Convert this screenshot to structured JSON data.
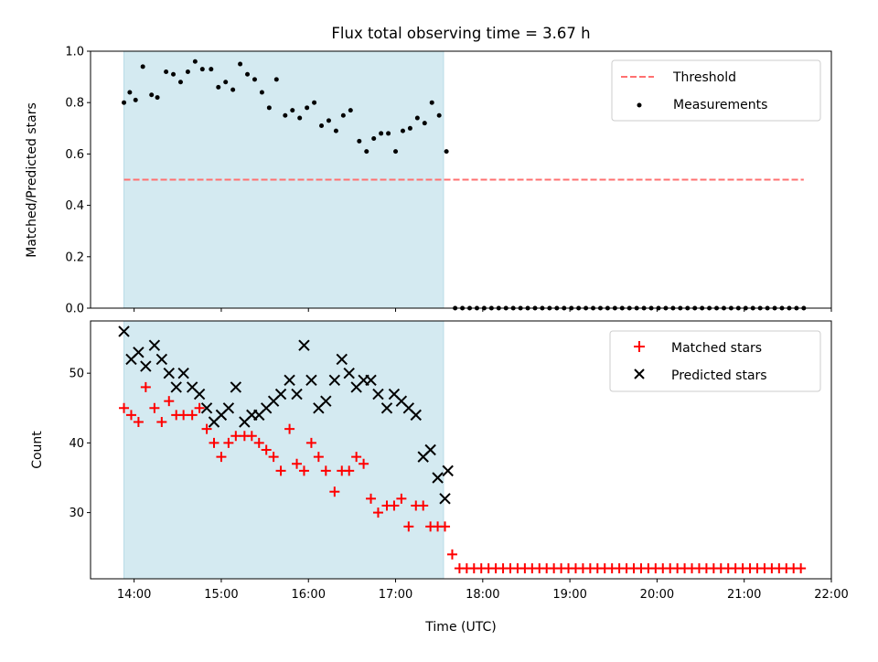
{
  "chart_data": [
    {
      "type": "scatter",
      "title": "Flux total observing time = 3.67 h",
      "xlabel": "",
      "ylabel": "Matched/Predicted stars",
      "ylim": [
        0.0,
        1.0
      ],
      "yticks": [
        "0.0",
        "0.2",
        "0.4",
        "0.6",
        "0.8",
        "1.0"
      ],
      "xlim": [
        "13:30",
        "22:00"
      ],
      "observing_window": [
        "13:53",
        "17:33"
      ],
      "threshold": 0.5,
      "legend": {
        "placement": "top-right",
        "entries": [
          "Threshold",
          "Measurements"
        ]
      },
      "colors": {
        "threshold": "#ff7070",
        "measurements": "#000000",
        "window": "#d4eaf1"
      },
      "series": [
        {
          "name": "Measurements",
          "x": [
            "13:53",
            "13:57",
            "14:01",
            "14:06",
            "14:12",
            "14:16",
            "14:22",
            "14:27",
            "14:32",
            "14:37",
            "14:42",
            "14:47",
            "14:53",
            "14:58",
            "15:03",
            "15:08",
            "15:13",
            "15:18",
            "15:23",
            "15:28",
            "15:33",
            "15:38",
            "15:44",
            "15:49",
            "15:54",
            "15:59",
            "16:04",
            "16:09",
            "16:14",
            "16:19",
            "16:24",
            "16:29",
            "16:35",
            "16:40",
            "16:45",
            "16:50",
            "16:55",
            "17:00",
            "17:05",
            "17:10",
            "17:15",
            "17:20",
            "17:25",
            "17:30",
            "17:35",
            "17:41",
            "17:46",
            "17:51",
            "17:56",
            "18:01",
            "18:06",
            "18:11",
            "18:16",
            "18:21",
            "18:26",
            "18:31",
            "18:36",
            "18:41",
            "18:46",
            "18:51",
            "18:56",
            "19:01",
            "19:06",
            "19:11",
            "19:16",
            "19:21",
            "19:26",
            "19:31",
            "19:36",
            "19:41",
            "19:46",
            "19:51",
            "19:56",
            "20:01",
            "20:06",
            "20:11",
            "20:16",
            "20:21",
            "20:26",
            "20:31",
            "20:36",
            "20:41",
            "20:46",
            "20:51",
            "20:56",
            "21:01",
            "21:06",
            "21:11",
            "21:16",
            "21:21",
            "21:26",
            "21:31",
            "21:36",
            "21:41"
          ],
          "values": [
            0.8,
            0.84,
            0.81,
            0.94,
            0.83,
            0.82,
            0.92,
            0.91,
            0.88,
            0.92,
            0.96,
            0.93,
            0.93,
            0.86,
            0.88,
            0.85,
            0.95,
            0.91,
            0.89,
            0.84,
            0.78,
            0.89,
            0.75,
            0.77,
            0.74,
            0.78,
            0.8,
            0.71,
            0.73,
            0.69,
            0.75,
            0.77,
            0.65,
            0.61,
            0.66,
            0.68,
            0.68,
            0.61,
            0.69,
            0.7,
            0.74,
            0.72,
            0.8,
            0.75,
            0.61,
            0.0,
            0.0,
            0.0,
            0.0,
            0.0,
            0.0,
            0.0,
            0.0,
            0.0,
            0.0,
            0.0,
            0.0,
            0.0,
            0.0,
            0.0,
            0.0,
            0.0,
            0.0,
            0.0,
            0.0,
            0.0,
            0.0,
            0.0,
            0.0,
            0.0,
            0.0,
            0.0,
            0.0,
            0.0,
            0.0,
            0.0,
            0.0,
            0.0,
            0.0,
            0.0,
            0.0,
            0.0,
            0.0,
            0.0,
            0.0,
            0.0,
            0.0,
            0.0,
            0.0,
            0.0,
            0.0,
            0.0,
            0.0,
            0.0
          ]
        }
      ]
    },
    {
      "type": "scatter",
      "title": "",
      "xlabel": "Time (UTC)",
      "ylabel": "Count",
      "ylim": [
        20.5,
        57.5
      ],
      "yticks": [
        "30",
        "40",
        "50"
      ],
      "xlim": [
        "13:30",
        "22:00"
      ],
      "xticks": [
        "14:00",
        "15:00",
        "16:00",
        "17:00",
        "18:00",
        "19:00",
        "20:00",
        "21:00",
        "22:00"
      ],
      "observing_window": [
        "13:53",
        "17:33"
      ],
      "legend": {
        "placement": "top-right",
        "entries": [
          "Matched stars",
          "Predicted stars"
        ]
      },
      "colors": {
        "matched": "#ff0000",
        "predicted": "#000000",
        "window": "#d4eaf1"
      },
      "series": [
        {
          "name": "Matched stars",
          "x": [
            "13:53",
            "13:58",
            "14:03",
            "14:08",
            "14:14",
            "14:19",
            "14:24",
            "14:29",
            "14:34",
            "14:40",
            "14:45",
            "14:50",
            "14:55",
            "15:00",
            "15:05",
            "15:10",
            "15:16",
            "15:21",
            "15:26",
            "15:31",
            "15:36",
            "15:41",
            "15:47",
            "15:52",
            "15:57",
            "16:02",
            "16:07",
            "16:12",
            "16:18",
            "16:23",
            "16:28",
            "16:33",
            "16:38",
            "16:43",
            "16:48",
            "16:54",
            "16:59",
            "17:04",
            "17:09",
            "17:14",
            "17:19",
            "17:24",
            "17:29",
            "17:34",
            "17:39",
            "17:44",
            "17:49",
            "17:54",
            "17:59",
            "18:04",
            "18:09",
            "18:14",
            "18:19",
            "18:24",
            "18:29",
            "18:34",
            "18:39",
            "18:44",
            "18:49",
            "18:54",
            "18:59",
            "19:04",
            "19:09",
            "19:14",
            "19:19",
            "19:24",
            "19:29",
            "19:34",
            "19:39",
            "19:44",
            "19:49",
            "19:54",
            "19:59",
            "20:04",
            "20:09",
            "20:14",
            "20:19",
            "20:24",
            "20:29",
            "20:34",
            "20:39",
            "20:44",
            "20:49",
            "20:54",
            "20:59",
            "21:04",
            "21:09",
            "21:14",
            "21:19",
            "21:24",
            "21:29",
            "21:34",
            "21:39"
          ],
          "values": [
            45,
            44,
            43,
            48,
            45,
            43,
            46,
            44,
            44,
            44,
            45,
            42,
            40,
            38,
            40,
            41,
            41,
            41,
            40,
            39,
            38,
            36,
            42,
            37,
            36,
            40,
            38,
            36,
            33,
            36,
            36,
            38,
            37,
            32,
            30,
            31,
            31,
            32,
            28,
            31,
            31,
            28,
            28,
            28,
            24,
            22,
            22,
            22,
            22,
            22,
            22,
            22,
            22,
            22,
            22,
            22,
            22,
            22,
            22,
            22,
            22,
            22,
            22,
            22,
            22,
            22,
            22,
            22,
            22,
            22,
            22,
            22,
            22,
            22,
            22,
            22,
            22,
            22,
            22,
            22,
            22,
            22,
            22,
            22,
            22,
            22,
            22,
            22,
            22,
            22,
            22,
            22,
            22
          ]
        },
        {
          "name": "Predicted stars",
          "x": [
            "13:53",
            "13:58",
            "14:03",
            "14:08",
            "14:14",
            "14:19",
            "14:24",
            "14:29",
            "14:34",
            "14:40",
            "14:45",
            "14:50",
            "14:55",
            "15:00",
            "15:05",
            "15:10",
            "15:16",
            "15:21",
            "15:26",
            "15:31",
            "15:36",
            "15:41",
            "15:47",
            "15:52",
            "15:57",
            "16:02",
            "16:07",
            "16:12",
            "16:18",
            "16:23",
            "16:28",
            "16:33",
            "16:38",
            "16:43",
            "16:48",
            "16:54",
            "16:59",
            "17:04",
            "17:09",
            "17:14",
            "17:19",
            "17:24",
            "17:29",
            "17:34"
          ],
          "values": [
            56,
            52,
            53,
            51,
            54,
            52,
            50,
            48,
            50,
            48,
            47,
            45,
            43,
            44,
            45,
            48,
            43,
            44,
            44,
            45,
            46,
            47,
            49,
            47,
            54,
            49,
            45,
            46,
            49,
            52,
            50,
            48,
            49,
            49,
            47,
            45,
            47,
            46,
            45,
            44,
            38,
            39,
            35,
            32
          ]
        }
      ]
    },
    {
      "type": "scatter",
      "title": "",
      "series": [
        {
          "name": "",
          "x": [
            "17:36"
          ],
          "values": [
            36
          ]
        }
      ]
    }
  ]
}
